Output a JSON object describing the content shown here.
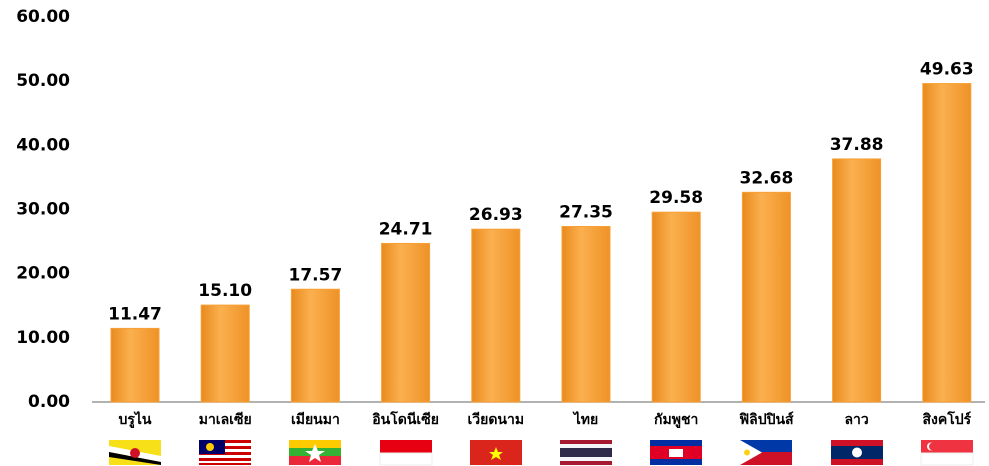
{
  "chart_data": {
    "type": "bar",
    "categories": [
      "บรูไน",
      "มาเลเซีย",
      "เมียนมา",
      "อินโดนีเซีย",
      "เวียดนาม",
      "ไทย",
      "กัมพูชา",
      "ฟิลิปปินส์",
      "ลาว",
      "สิงคโปร์"
    ],
    "values": [
      11.47,
      15.1,
      17.57,
      24.71,
      26.93,
      27.35,
      29.58,
      32.68,
      37.88,
      49.63
    ],
    "value_labels": [
      "11.47",
      "15.10",
      "17.57",
      "24.71",
      "26.93",
      "27.35",
      "29.58",
      "32.68",
      "37.88",
      "49.63"
    ],
    "color": "#f7a035",
    "ylim": [
      0,
      60
    ],
    "yticks": [
      {
        "value": 0,
        "label": "0.00"
      },
      {
        "value": 10,
        "label": "10.00"
      },
      {
        "value": 20,
        "label": "20.00"
      },
      {
        "value": 30,
        "label": "30.00"
      },
      {
        "value": 40,
        "label": "40.00"
      },
      {
        "value": 50,
        "label": "50.00"
      },
      {
        "value": 60,
        "label": "60.00"
      }
    ],
    "grid": false
  }
}
